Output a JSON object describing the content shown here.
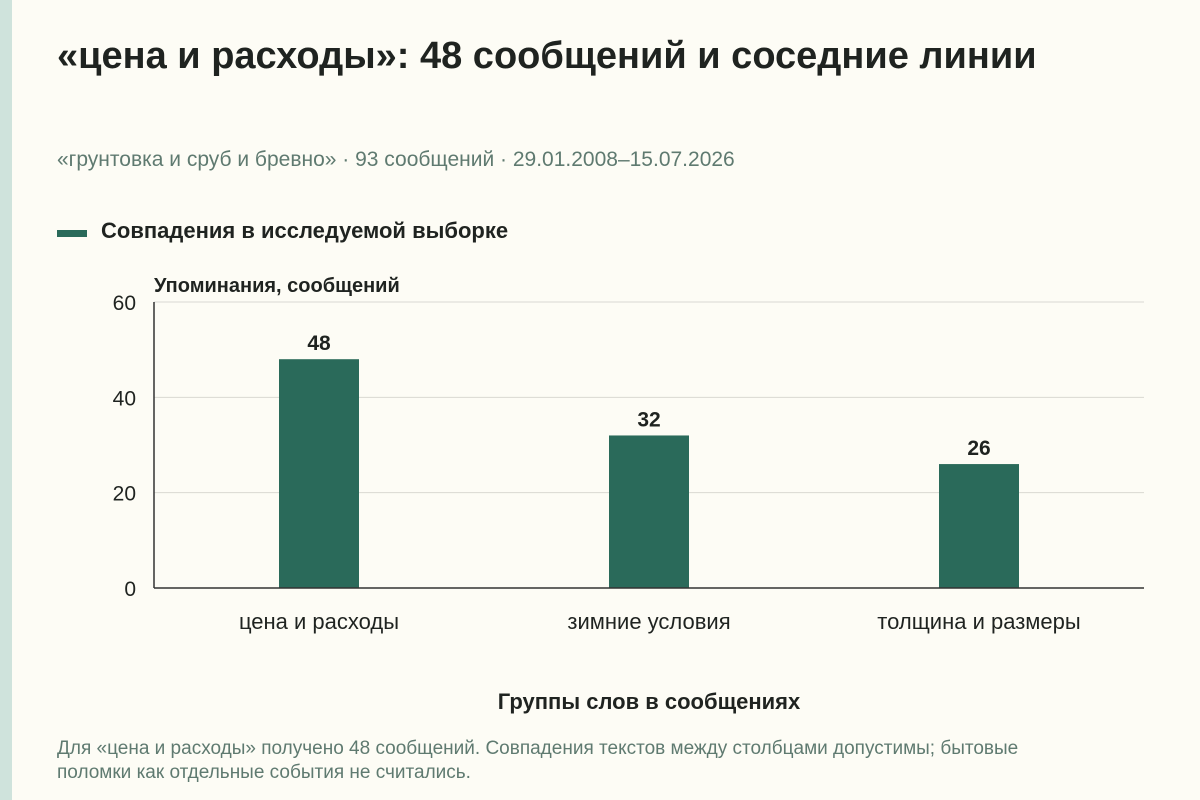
{
  "header": {
    "title": "«цена и расходы»: 48 сообщений и соседние линии",
    "subtitle": "«грунтовка и сруб и бревно» · 93 сообщений · 29.01.2008–15.07.2026"
  },
  "legend": {
    "label": "Совпадения в исследуемой выборке",
    "color": "#2a6a5a"
  },
  "footnote": "Для «цена и расходы» получено 48 сообщений. Совпадения текстов между столбцами допустимы; бытовые поломки как отдельные события не считались.",
  "chart_data": {
    "type": "bar",
    "title": "«цена и расходы»: 48 сообщений и соседние линии",
    "subtitle": "«грунтовка и сруб и бревно» · 93 сообщений · 29.01.2008–15.07.2026",
    "categories": [
      "цена и расходы",
      "зимние условия",
      "толщина и размеры"
    ],
    "series": [
      {
        "name": "Совпадения в исследуемой выборке",
        "values": [
          48,
          32,
          26
        ],
        "color": "#2a6a5a"
      }
    ],
    "data_labels": [
      "48",
      "32",
      "26"
    ],
    "xlabel": "Группы слов в сообщениях",
    "ylabel": "Упоминания, сообщений",
    "ylim": [
      0,
      60
    ],
    "yticks": [
      0,
      20,
      40,
      60
    ],
    "ytick_labels": [
      "0",
      "20",
      "40",
      "60"
    ],
    "grid": true,
    "legend_position": "top-left"
  }
}
